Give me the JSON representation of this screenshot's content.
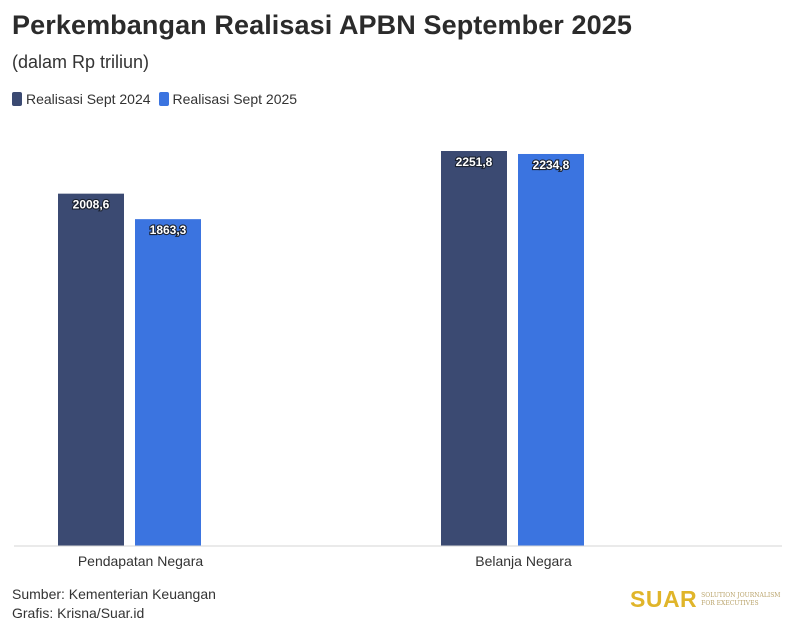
{
  "title": "Perkembangan Realisasi APBN September 2025",
  "subtitle": "(dalam Rp triliun)",
  "footer": {
    "source": "Sumber: Kementerian Keuangan",
    "credit": "Grafis: Krisna/Suar.id"
  },
  "logo": {
    "word": "SUAR",
    "tagline": "Solution Journalism for Executives"
  },
  "colors": {
    "series_2024": "#3b4a72",
    "series_2025": "#3b74e0"
  },
  "chart_data": {
    "type": "bar",
    "categories": [
      "Pendapatan Negara",
      "Belanja Negara"
    ],
    "series": [
      {
        "name": "Realisasi Sept 2024",
        "values": [
          2008.6,
          2251.8
        ],
        "labels": [
          "2008,6",
          "2251,8"
        ]
      },
      {
        "name": "Realisasi Sept 2025",
        "values": [
          1863.3,
          2234.8
        ],
        "labels": [
          "1863,3",
          "2234,8"
        ]
      }
    ],
    "title": "Perkembangan Realisasi APBN September 2025",
    "xlabel": "",
    "ylabel": "",
    "ylim": [
      0,
      2251.8
    ],
    "grid": false,
    "legend": "top-left"
  }
}
